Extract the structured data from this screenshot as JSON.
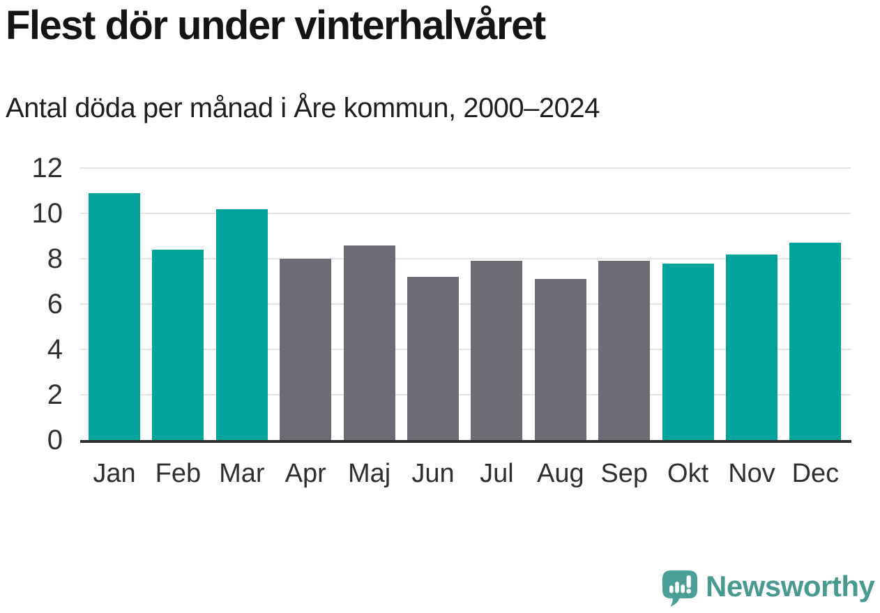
{
  "chart_data": {
    "type": "bar",
    "title": "Flest dör under vinterhalvåret",
    "subtitle": "Antal döda per månad i Åre kommun, 2000–2024",
    "categories": [
      "Jan",
      "Feb",
      "Mar",
      "Apr",
      "Maj",
      "Jun",
      "Jul",
      "Aug",
      "Sep",
      "Okt",
      "Nov",
      "Dec"
    ],
    "values": [
      10.9,
      8.4,
      10.2,
      8.0,
      8.6,
      7.2,
      7.9,
      7.1,
      7.9,
      7.8,
      8.2,
      8.7
    ],
    "xlabel": "",
    "ylabel": "",
    "ylim": [
      0,
      12
    ],
    "yticks": [
      0,
      2,
      4,
      6,
      8,
      10,
      12
    ],
    "grid": "horizontal-only",
    "legend": "none",
    "bar_palette": {
      "winter": "#00A49A",
      "summer": "#6E6B74"
    },
    "bar_color_keys": [
      "winter",
      "winter",
      "winter",
      "summer",
      "summer",
      "summer",
      "summer",
      "summer",
      "summer",
      "winter",
      "winter",
      "winter"
    ]
  },
  "colors": {
    "background": "#ffffff",
    "gridline": "#e3e3e3",
    "axis_line": "#2e2e2e",
    "title_text": "#141414",
    "subtitle_text": "#1f1f1f",
    "tick_label_text": "#2f2f2f"
  },
  "footer": {
    "brand": "Newsworthy",
    "brand_text_color": "#489A90",
    "logo_color": "#4AA096"
  }
}
